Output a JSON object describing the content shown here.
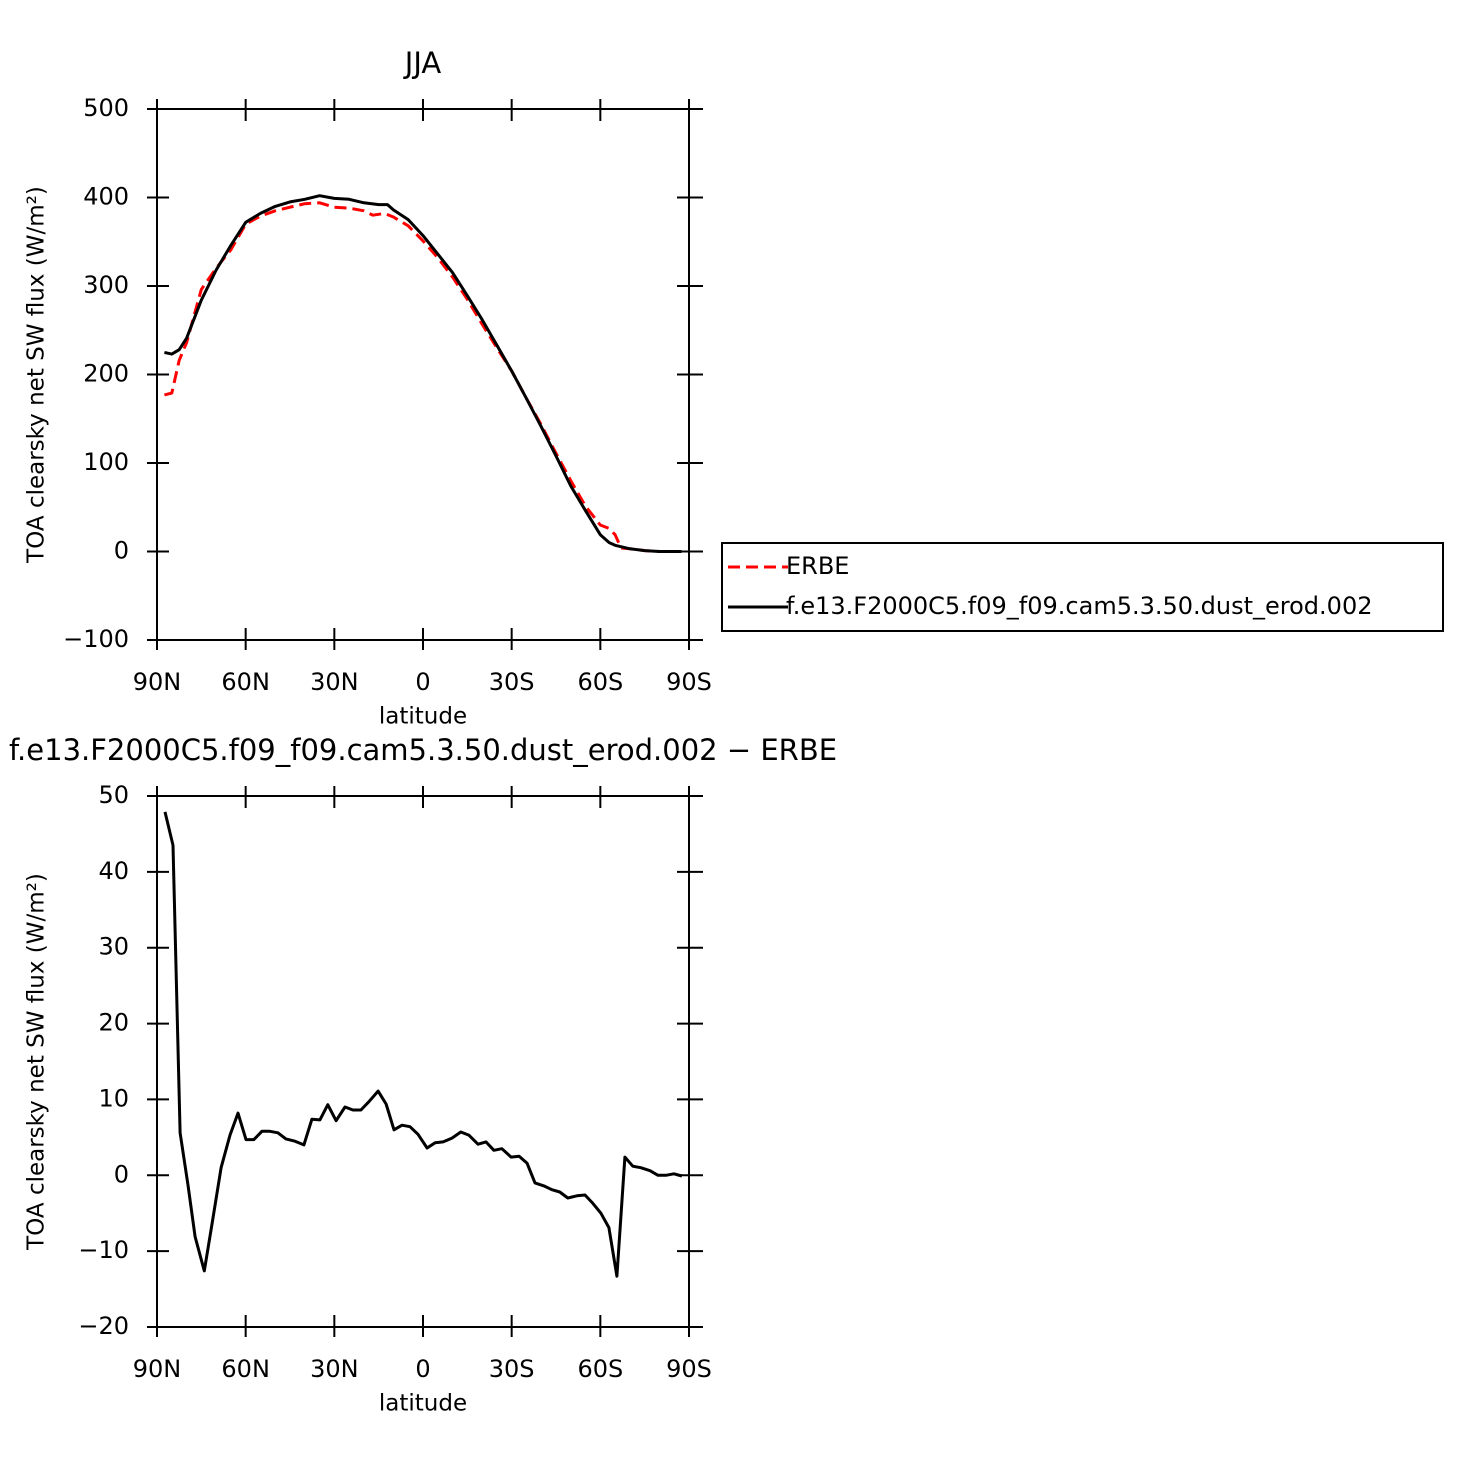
{
  "chart_data": [
    {
      "type": "line",
      "title": "JJA",
      "xlabel": "latitude",
      "ylabel": "TOA clearsky net SW flux (W/m²)",
      "xlim": [
        90,
        -90
      ],
      "xticks": [
        {
          "value": 90,
          "label": "90N"
        },
        {
          "value": 60,
          "label": "60N"
        },
        {
          "value": 30,
          "label": "30N"
        },
        0,
        {
          "value": -30,
          "label": "30S"
        },
        {
          "value": -60,
          "label": "60S"
        },
        {
          "value": -90,
          "label": "90S"
        }
      ],
      "ylim": [
        -100,
        500
      ],
      "yticks": [
        {
          "value": -100,
          "label": "−100"
        },
        0,
        100,
        200,
        300,
        400,
        500
      ],
      "legend": "right",
      "series": [
        {
          "name": "ERBE",
          "color": "#ff0000",
          "dash": true,
          "x": [
            87.5,
            85,
            82.5,
            80,
            75,
            70,
            65,
            60,
            55,
            50,
            45,
            40,
            35,
            30,
            25,
            20,
            17,
            13,
            10,
            5,
            0,
            -5,
            -10,
            -15,
            -20,
            -25,
            -30,
            -35,
            -40,
            -45,
            -50,
            -55,
            -60,
            -63,
            -65,
            -67,
            -70,
            -75,
            -80,
            -87.5
          ],
          "values": [
            177,
            179,
            216,
            236,
            296,
            320,
            341,
            370,
            379,
            385,
            389,
            393,
            394,
            389,
            388,
            385,
            380,
            382,
            378,
            368,
            351,
            332,
            310,
            285,
            257,
            230,
            204,
            173,
            143,
            111,
            80,
            51,
            30,
            26,
            19,
            4,
            3,
            1,
            0,
            0
          ]
        },
        {
          "name": "f.e13.F2000C5.f09_f09.cam5.3.50.dust_erod.002",
          "color": "#000000",
          "dash": false,
          "x": [
            87.5,
            85,
            82.5,
            80,
            75,
            70,
            65,
            60,
            55,
            50,
            45,
            40,
            35,
            30,
            25,
            20,
            15,
            12,
            10,
            5,
            0,
            -5,
            -10,
            -15,
            -20,
            -25,
            -30,
            -35,
            -40,
            -45,
            -50,
            -55,
            -60,
            -63,
            -65,
            -70,
            -75,
            -80,
            -87.5
          ],
          "values": [
            225,
            223,
            228,
            241,
            284,
            318,
            346,
            372,
            382,
            390,
            395,
            398,
            402,
            399,
            398,
            394,
            392,
            392,
            386,
            375,
            357,
            336,
            315,
            289,
            262,
            233,
            204,
            173,
            141,
            108,
            74,
            46,
            19,
            10,
            7,
            3,
            1,
            0,
            0
          ]
        }
      ]
    },
    {
      "type": "line",
      "title": "f.e13.F2000C5.f09_f09.cam5.3.50.dust_erod.002 − ERBE",
      "xlabel": "latitude",
      "ylabel": "TOA clearsky net SW flux (W/m²)",
      "xlim": [
        90,
        -90
      ],
      "xticks": [
        {
          "value": 90,
          "label": "90N"
        },
        {
          "value": 60,
          "label": "60N"
        },
        {
          "value": 30,
          "label": "30N"
        },
        0,
        {
          "value": -30,
          "label": "30S"
        },
        {
          "value": -60,
          "label": "60S"
        },
        {
          "value": -90,
          "label": "90S"
        }
      ],
      "ylim": [
        -20,
        50
      ],
      "yticks": [
        {
          "value": -20,
          "label": "−20"
        },
        {
          "value": -10,
          "label": "−10"
        },
        0,
        10,
        20,
        30,
        40,
        50
      ],
      "color": "#000000",
      "x": [
        87.3,
        84.6,
        82.2,
        79.5,
        77.1,
        74,
        71.3,
        68.3,
        65.3,
        62.6,
        59.9,
        57.2,
        54.5,
        51.8,
        49.1,
        46.4,
        43.3,
        40.3,
        37.6,
        34.9,
        32.2,
        29.4,
        26.4,
        23.7,
        21,
        18.3,
        15.2,
        12.5,
        9.8,
        7.1,
        4.4,
        1.7,
        -1.4,
        -4.1,
        -6.8,
        -9.8,
        -12.8,
        -15.5,
        -18.6,
        -21.3,
        -24,
        -26.7,
        -29.8,
        -32.5,
        -35.2,
        -37.9,
        -40.9,
        -43.6,
        -46.3,
        -49,
        -52.1,
        -54.8,
        -57.5,
        -60.2,
        -62.9,
        -65.6,
        -68.3,
        -71,
        -73.7,
        -76.8,
        -79.5,
        -82.2,
        -84.9,
        -87.6
      ],
      "values": [
        47.9,
        43.5,
        5.6,
        -1.3,
        -8.1,
        -12.6,
        -6.2,
        1.0,
        5.3,
        8.2,
        4.7,
        4.7,
        5.8,
        5.8,
        5.6,
        4.8,
        4.5,
        4.0,
        7.4,
        7.3,
        9.3,
        7.2,
        9.0,
        8.6,
        8.6,
        9.7,
        11.1,
        9.4,
        6.0,
        6.6,
        6.4,
        5.4,
        3.6,
        4.3,
        4.4,
        4.9,
        5.7,
        5.3,
        4.1,
        4.4,
        3.3,
        3.5,
        2.4,
        2.5,
        1.6,
        -1.0,
        -1.4,
        -1.9,
        -2.2,
        -3.0,
        -2.7,
        -2.6,
        -3.7,
        -5.0,
        -6.9,
        -13.3,
        2.4,
        1.2,
        1.0,
        0.6,
        0.0,
        0.0,
        0.2,
        -0.1
      ]
    }
  ]
}
